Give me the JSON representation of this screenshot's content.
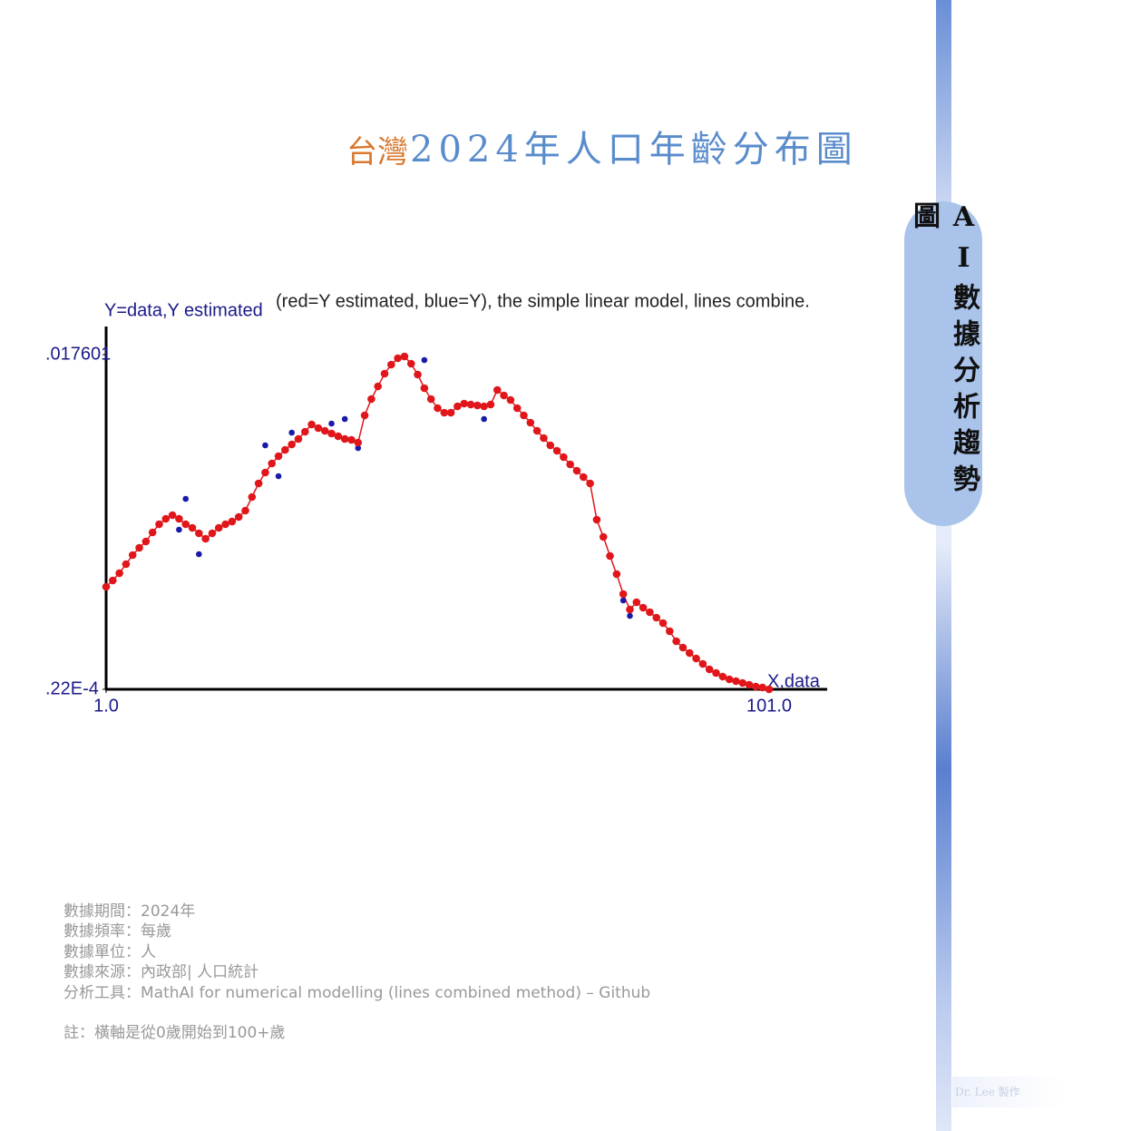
{
  "header": {
    "title_prefix": "台灣",
    "title_main": "2024年人口年齡分布圖"
  },
  "sidebar": {
    "label": "AI數據分析趨勢圖"
  },
  "chart_data": {
    "type": "scatter",
    "title": "(red=Y estimated, blue=Y), the simple linear model, lines combine.",
    "y_label": "Y=data,Y estimated",
    "x_label": "X,data",
    "x": [
      1,
      2,
      3,
      4,
      5,
      6,
      7,
      8,
      9,
      10,
      11,
      12,
      13,
      14,
      15,
      16,
      17,
      18,
      19,
      20,
      21,
      22,
      23,
      24,
      25,
      26,
      27,
      28,
      29,
      30,
      31,
      32,
      33,
      34,
      35,
      36,
      37,
      38,
      39,
      40,
      41,
      42,
      43,
      44,
      45,
      46,
      47,
      48,
      49,
      50,
      51,
      52,
      53,
      54,
      55,
      56,
      57,
      58,
      59,
      60,
      61,
      62,
      63,
      64,
      65,
      66,
      67,
      68,
      69,
      70,
      71,
      72,
      73,
      74,
      75,
      76,
      77,
      78,
      79,
      80,
      81,
      82,
      83,
      84,
      85,
      86,
      87,
      88,
      89,
      90,
      91,
      92,
      93,
      94,
      95,
      96,
      97,
      98,
      99,
      100,
      101
    ],
    "series": [
      {
        "color": "#1a1aa8",
        "style": "points",
        "values": [
          0.005405,
          0.005739,
          0.00612,
          0.006596,
          0.007073,
          0.007454,
          0.007787,
          0.008264,
          0.008692,
          0.008978,
          0.009169,
          0.008407,
          0.010026,
          0.008502,
          0.00712,
          0.00793,
          0.008216,
          0.008502,
          0.008692,
          0.008835,
          0.009074,
          0.009407,
          0.010122,
          0.010836,
          0.012837,
          0.011884,
          0.011217,
          0.012599,
          0.013504,
          0.013171,
          0.013552,
          0.013933,
          0.013742,
          0.013599,
          0.01398,
          0.013314,
          0.014219,
          0.013123,
          0.012694,
          0.014409,
          0.015267,
          0.015934,
          0.016601,
          0.017077,
          0.017411,
          0.017506,
          0.017125,
          0.016553,
          0.017315,
          0.015267,
          0.01479,
          0.014552,
          0.014552,
          0.014886,
          0.015029,
          0.014981,
          0.014933,
          0.014219,
          0.014981,
          0.015743,
          0.015457,
          0.015219,
          0.01479,
          0.014409,
          0.014028,
          0.013599,
          0.013218,
          0.012837,
          0.012551,
          0.012218,
          0.011837,
          0.011503,
          0.01117,
          0.010836,
          0.008931,
          0.008026,
          0.007025,
          0.006072,
          0.004691,
          0.003881,
          0.004595,
          0.00431,
          0.004071,
          0.003786,
          0.0035,
          0.003071,
          0.002547,
          0.002213,
          0.001928,
          0.001642,
          0.001356,
          0.00107,
          0.00088,
          0.000689,
          0.000546,
          0.000451,
          0.000355,
          0.00026,
          0.000165,
          0.000117,
          2.2e-05
        ]
      },
      {
        "color": "#e0161b",
        "style": "line-points",
        "values": [
          0.005405,
          0.005739,
          0.00612,
          0.006596,
          0.007073,
          0.007454,
          0.007787,
          0.008264,
          0.008692,
          0.008978,
          0.009169,
          0.008978,
          0.008692,
          0.008502,
          0.008216,
          0.00793,
          0.008216,
          0.008502,
          0.008692,
          0.008835,
          0.009074,
          0.009407,
          0.010122,
          0.010836,
          0.011408,
          0.011884,
          0.012265,
          0.012599,
          0.012885,
          0.013171,
          0.013552,
          0.013933,
          0.013742,
          0.013599,
          0.013456,
          0.013314,
          0.013171,
          0.013123,
          0.01298,
          0.014409,
          0.015267,
          0.015934,
          0.016601,
          0.017077,
          0.017411,
          0.017506,
          0.017125,
          0.016553,
          0.015838,
          0.015267,
          0.01479,
          0.014552,
          0.014552,
          0.014886,
          0.015029,
          0.014981,
          0.014933,
          0.014886,
          0.014981,
          0.015743,
          0.015457,
          0.015219,
          0.01479,
          0.014409,
          0.014028,
          0.013599,
          0.013218,
          0.012837,
          0.012551,
          0.012218,
          0.011837,
          0.011503,
          0.01117,
          0.010836,
          0.008931,
          0.008026,
          0.007025,
          0.006072,
          0.005024,
          0.004214,
          0.004595,
          0.00431,
          0.004071,
          0.003786,
          0.0035,
          0.003071,
          0.002547,
          0.002213,
          0.001928,
          0.001642,
          0.001356,
          0.00107,
          0.00088,
          0.000689,
          0.000546,
          0.000451,
          0.000355,
          0.00026,
          0.000165,
          0.000117,
          2.2e-05
        ]
      }
    ],
    "xlim": [
      1,
      101
    ],
    "xticks": [
      {
        "value": 1,
        "label": "1.0"
      },
      {
        "value": 101,
        "label": "101.0"
      }
    ],
    "ylim": [
      2.2e-05,
      0.017601
    ],
    "yticks": [
      {
        "value": 2.2e-05,
        "label": ".22E-4"
      },
      {
        "value": 0.017601,
        "label": ".017601"
      }
    ],
    "grid": false
  },
  "notes": [
    "數據期間：2024年",
    "數據頻率：每歲",
    "數據單位：人",
    "數據來源：內政部| 人口統計",
    "分析工具：MathAI for numerical modelling (lines combined method) – Github",
    "",
    "註：橫軸是從0歲開始到100+歲"
  ],
  "credit": "Dr. Lee 製作"
}
